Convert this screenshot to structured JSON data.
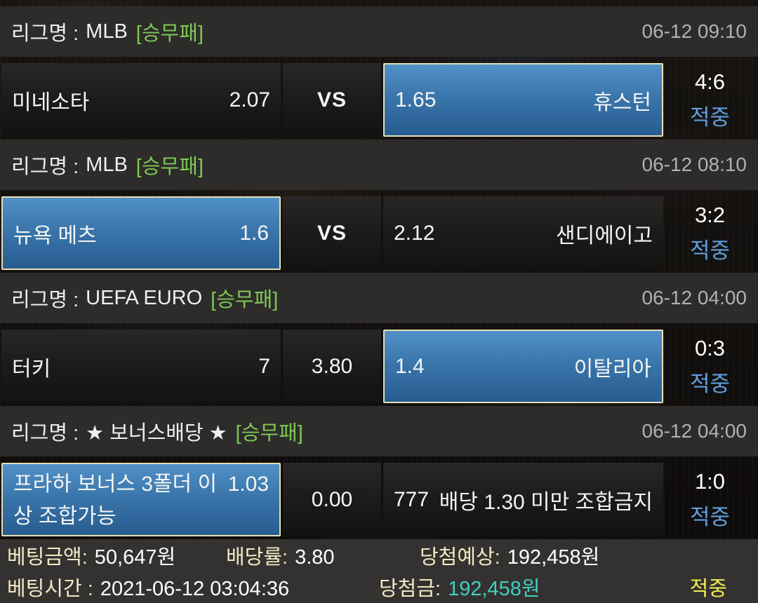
{
  "matches": [
    {
      "league_prefix": "리그명 :",
      "league_name": "MLB",
      "market": "[승무패]",
      "time": "06-12 09:10",
      "home": {
        "name": "미네소타",
        "odds": "2.07",
        "selected": false
      },
      "middle_label": "VS",
      "away": {
        "odds": "1.65",
        "name": "휴스턴",
        "selected": true
      },
      "score": "4:6",
      "result": "적중"
    },
    {
      "league_prefix": "리그명 :",
      "league_name": "MLB",
      "market": "[승무패]",
      "time": "06-12 08:10",
      "home": {
        "name": "뉴욕 메츠",
        "odds": "1.6",
        "selected": true
      },
      "middle_label": "VS",
      "away": {
        "odds": "2.12",
        "name": "샌디에이고",
        "selected": false
      },
      "score": "3:2",
      "result": "적중"
    },
    {
      "league_prefix": "리그명 :",
      "league_name": "UEFA EURO",
      "market": "[승무패]",
      "time": "06-12 04:00",
      "home": {
        "name": "터키",
        "odds": "7",
        "selected": false
      },
      "middle_label": "3.80",
      "away": {
        "odds": "1.4",
        "name": "이탈리아",
        "selected": true
      },
      "score": "0:3",
      "result": "적중"
    },
    {
      "league_prefix": "리그명 :",
      "league_name": "★ 보너스배당 ★",
      "market": "[승무패]",
      "time": "06-12 04:00",
      "home": {
        "name": "프라하 보너스 3폴더 이상 조합가능",
        "odds": "1.03",
        "selected": true
      },
      "middle_label": "0.00",
      "away": {
        "odds": "777",
        "name": "배당 1.30 미만 조합금지",
        "selected": false
      },
      "score": "1:0",
      "result": "적중"
    }
  ],
  "summary": {
    "bet_amount_label": "베팅금액:",
    "bet_amount": "50,647원",
    "odds_label": "배당률:",
    "odds": "3.80",
    "expected_label": "당첨예상:",
    "expected": "192,458원",
    "bet_time_label": "베팅시간 :",
    "bet_time": "2021-06-12 03:04:36",
    "win_label": "당첨금:",
    "win": "192,458원",
    "result": "적중"
  },
  "colors": {
    "accent_green": "#7dc855",
    "selected_blue_top": "#5191c8",
    "selected_blue_bottom": "#275c90",
    "selected_border": "#e8dfb5",
    "result_blue": "#5e9fe0",
    "win_teal": "#3fd0c5",
    "result_yellow": "#f3ed52"
  }
}
